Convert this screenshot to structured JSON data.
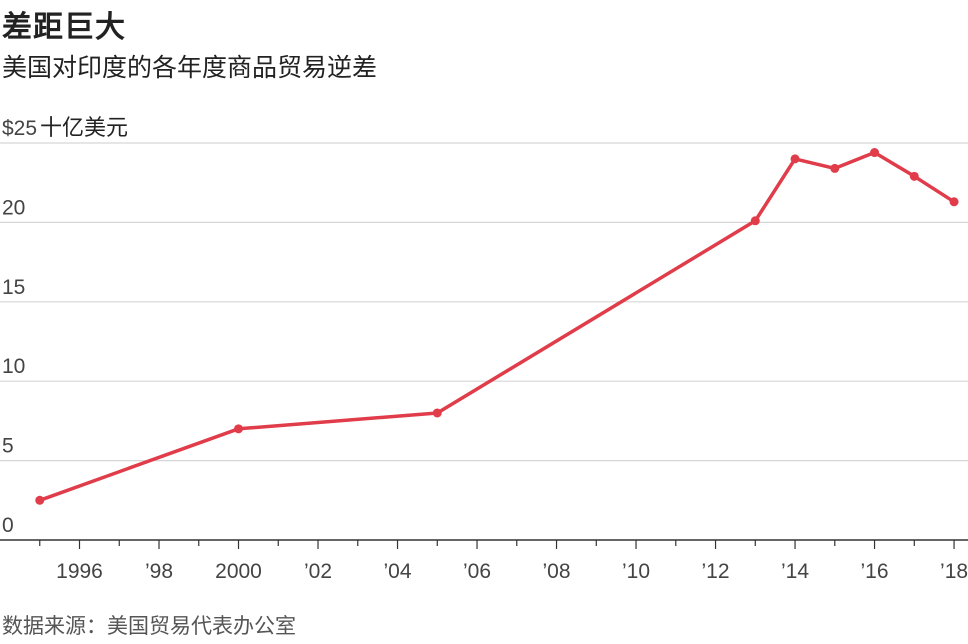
{
  "title": "差距巨大",
  "subtitle": "美国对印度的各年度商品贸易逆差",
  "source": "数据来源：美国贸易代表办公室",
  "colors": {
    "line": "#e03c4a",
    "grid": "#d6d6d6",
    "axis": "#333333",
    "text": "#222222",
    "tick_text": "#444444"
  },
  "chart_data": {
    "type": "line",
    "title": "差距巨大",
    "subtitle": "美国对印度的各年度商品贸易逆差",
    "ylabel": "十亿美元",
    "y_unit_prefix": "$",
    "x": [
      1995,
      2000,
      2005,
      2013,
      2014,
      2015,
      2016,
      2017,
      2018
    ],
    "series": [
      {
        "values": [
          2.5,
          7.0,
          8.0,
          20.1,
          24.0,
          23.4,
          24.4,
          22.9,
          21.3
        ]
      }
    ],
    "xlim": [
      1994,
      2018.2
    ],
    "ylim": [
      0,
      25
    ],
    "y_ticks": [
      0,
      5,
      10,
      15,
      20,
      25
    ],
    "y_tick_labels": [
      "0",
      "5",
      "10",
      "15",
      "20",
      "$25"
    ],
    "x_ticks": [
      1996,
      1998,
      2000,
      2002,
      2004,
      2006,
      2008,
      2010,
      2012,
      2014,
      2016,
      2018
    ],
    "x_tick_labels": [
      "1996",
      "’98",
      "2000",
      "’02",
      "’04",
      "’06",
      "’08",
      "’10",
      "’12",
      "’14",
      "’16",
      "’18"
    ],
    "grid": true,
    "legend": "none"
  }
}
